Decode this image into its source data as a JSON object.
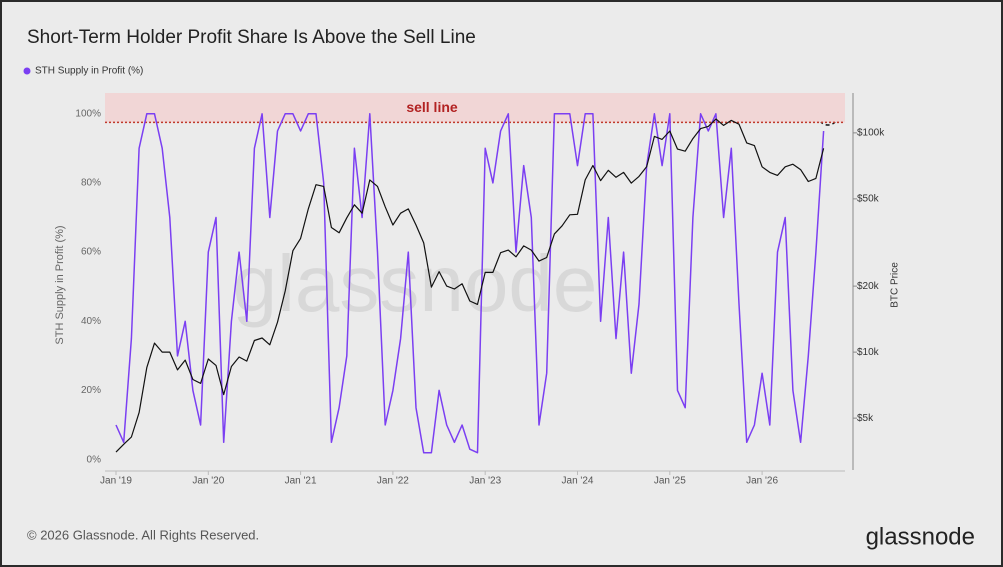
{
  "chart_data": {
    "type": "line",
    "title": "Short-Term Holder Profit Share Is Above the Sell Line",
    "ylabel": "STH Supply in Profit (%)",
    "footer": "© 2026 Glassnode. All Rights Reserved.",
    "brand": "glassnode",
    "watermark": "glassnode",
    "sell_line": {
      "value": 97.5,
      "label": "sell line"
    },
    "x": [
      "2019-01",
      "2019-02",
      "2019-03",
      "2019-04",
      "2019-05",
      "2019-06",
      "2019-07",
      "2019-08",
      "2019-09",
      "2019-10",
      "2019-11",
      "2019-12",
      "2020-01",
      "2020-02",
      "2020-03",
      "2020-04",
      "2020-05",
      "2020-06",
      "2020-07",
      "2020-08",
      "2020-09",
      "2020-10",
      "2020-11",
      "2020-12",
      "2021-01",
      "2021-02",
      "2021-03",
      "2021-04",
      "2021-05",
      "2021-06",
      "2021-07",
      "2021-08",
      "2021-09",
      "2021-10",
      "2021-11",
      "2021-12",
      "2022-01",
      "2022-02",
      "2022-03",
      "2022-04",
      "2022-05",
      "2022-06",
      "2022-07",
      "2022-08",
      "2022-09",
      "2022-10",
      "2022-11",
      "2022-12",
      "2023-01",
      "2023-02",
      "2023-03",
      "2023-04",
      "2023-05",
      "2023-06",
      "2023-07",
      "2023-08",
      "2023-09",
      "2023-10",
      "2023-11",
      "2023-12",
      "2024-01",
      "2024-02",
      "2024-03",
      "2024-04",
      "2024-05",
      "2024-06",
      "2024-07",
      "2024-08",
      "2024-09",
      "2024-10",
      "2024-11",
      "2024-12",
      "2025-01",
      "2025-02",
      "2025-03",
      "2025-04",
      "2025-05",
      "2025-06",
      "2025-07",
      "2025-08",
      "2025-09",
      "2025-10",
      "2025-11",
      "2025-12",
      "2026-01",
      "2026-02",
      "2026-03",
      "2026-04",
      "2026-05",
      "2026-06",
      "2026-07",
      "2026-08",
      "2026-09"
    ],
    "xticks": [
      {
        "value": "2019-01",
        "label": "Jan '19"
      },
      {
        "value": "2020-01",
        "label": "Jan '20"
      },
      {
        "value": "2021-01",
        "label": "Jan '21"
      },
      {
        "value": "2022-01",
        "label": "Jan '22"
      },
      {
        "value": "2023-01",
        "label": "Jan '23"
      },
      {
        "value": "2024-01",
        "label": "Jan '24"
      },
      {
        "value": "2025-01",
        "label": "Jan '25"
      },
      {
        "value": "2026-01",
        "label": "Jan '26"
      }
    ],
    "ylim": [
      -3,
      106
    ],
    "yticks": [
      {
        "value": 0,
        "label": "0%"
      },
      {
        "value": 20,
        "label": "20%"
      },
      {
        "value": 40,
        "label": "40%"
      },
      {
        "value": 60,
        "label": "60%"
      },
      {
        "value": 80,
        "label": "80%"
      },
      {
        "value": 100,
        "label": "100%"
      }
    ],
    "y2scale": "log",
    "y2lim": [
      2900,
      152000
    ],
    "y2ticks": [
      {
        "value": 5000,
        "label": "$5k"
      },
      {
        "value": 10000,
        "label": "$10k"
      },
      {
        "value": 20000,
        "label": "$20k"
      },
      {
        "value": 50000,
        "label": "$50k"
      },
      {
        "value": 100000,
        "label": "$100k"
      }
    ],
    "series": [
      {
        "name": "STH Supply in Profit (%)",
        "color": "#7b3ff2",
        "values": [
          10,
          5,
          35,
          90,
          100,
          100,
          90,
          70,
          30,
          40,
          20,
          10,
          60,
          70,
          5,
          40,
          60,
          40,
          90,
          100,
          70,
          95,
          100,
          100,
          95,
          100,
          100,
          80,
          5,
          15,
          30,
          90,
          70,
          100,
          60,
          10,
          20,
          35,
          60,
          15,
          2,
          2,
          20,
          10,
          5,
          10,
          3,
          2,
          90,
          80,
          95,
          100,
          60,
          85,
          70,
          10,
          25,
          100,
          100,
          100,
          85,
          100,
          100,
          40,
          70,
          35,
          60,
          25,
          45,
          85,
          100,
          85,
          100,
          20,
          15,
          70,
          100,
          95,
          100,
          70,
          90,
          45,
          5,
          10,
          25,
          10,
          60,
          70,
          20,
          5,
          30,
          60,
          95
        ]
      },
      {
        "name": "BTC Price",
        "color": "#111111",
        "axis": "y2",
        "values": [
          3500,
          3800,
          4100,
          5300,
          8500,
          11000,
          10000,
          10000,
          8300,
          9200,
          7500,
          7200,
          9300,
          8700,
          6400,
          8600,
          9500,
          9100,
          11300,
          11600,
          10800,
          13700,
          19000,
          29000,
          33000,
          45000,
          58000,
          57000,
          37000,
          35000,
          41000,
          47000,
          43000,
          61000,
          57000,
          46000,
          38000,
          43000,
          45000,
          38000,
          31500,
          19800,
          23300,
          20000,
          19400,
          20500,
          17100,
          16500,
          23100,
          23100,
          28400,
          29200,
          27200,
          30500,
          29200,
          26000,
          27000,
          34600,
          37700,
          42300,
          42500,
          61000,
          71000,
          60600,
          67500,
          62700,
          66000,
          59000,
          63300,
          70200,
          96400,
          93400,
          102000,
          84300,
          82500,
          94200,
          104600,
          107000,
          115700,
          108200,
          114000,
          109500,
          90000,
          87500,
          70000,
          66000,
          64000,
          70000,
          72000,
          68000,
          60000,
          62000,
          85000
        ]
      }
    ]
  }
}
